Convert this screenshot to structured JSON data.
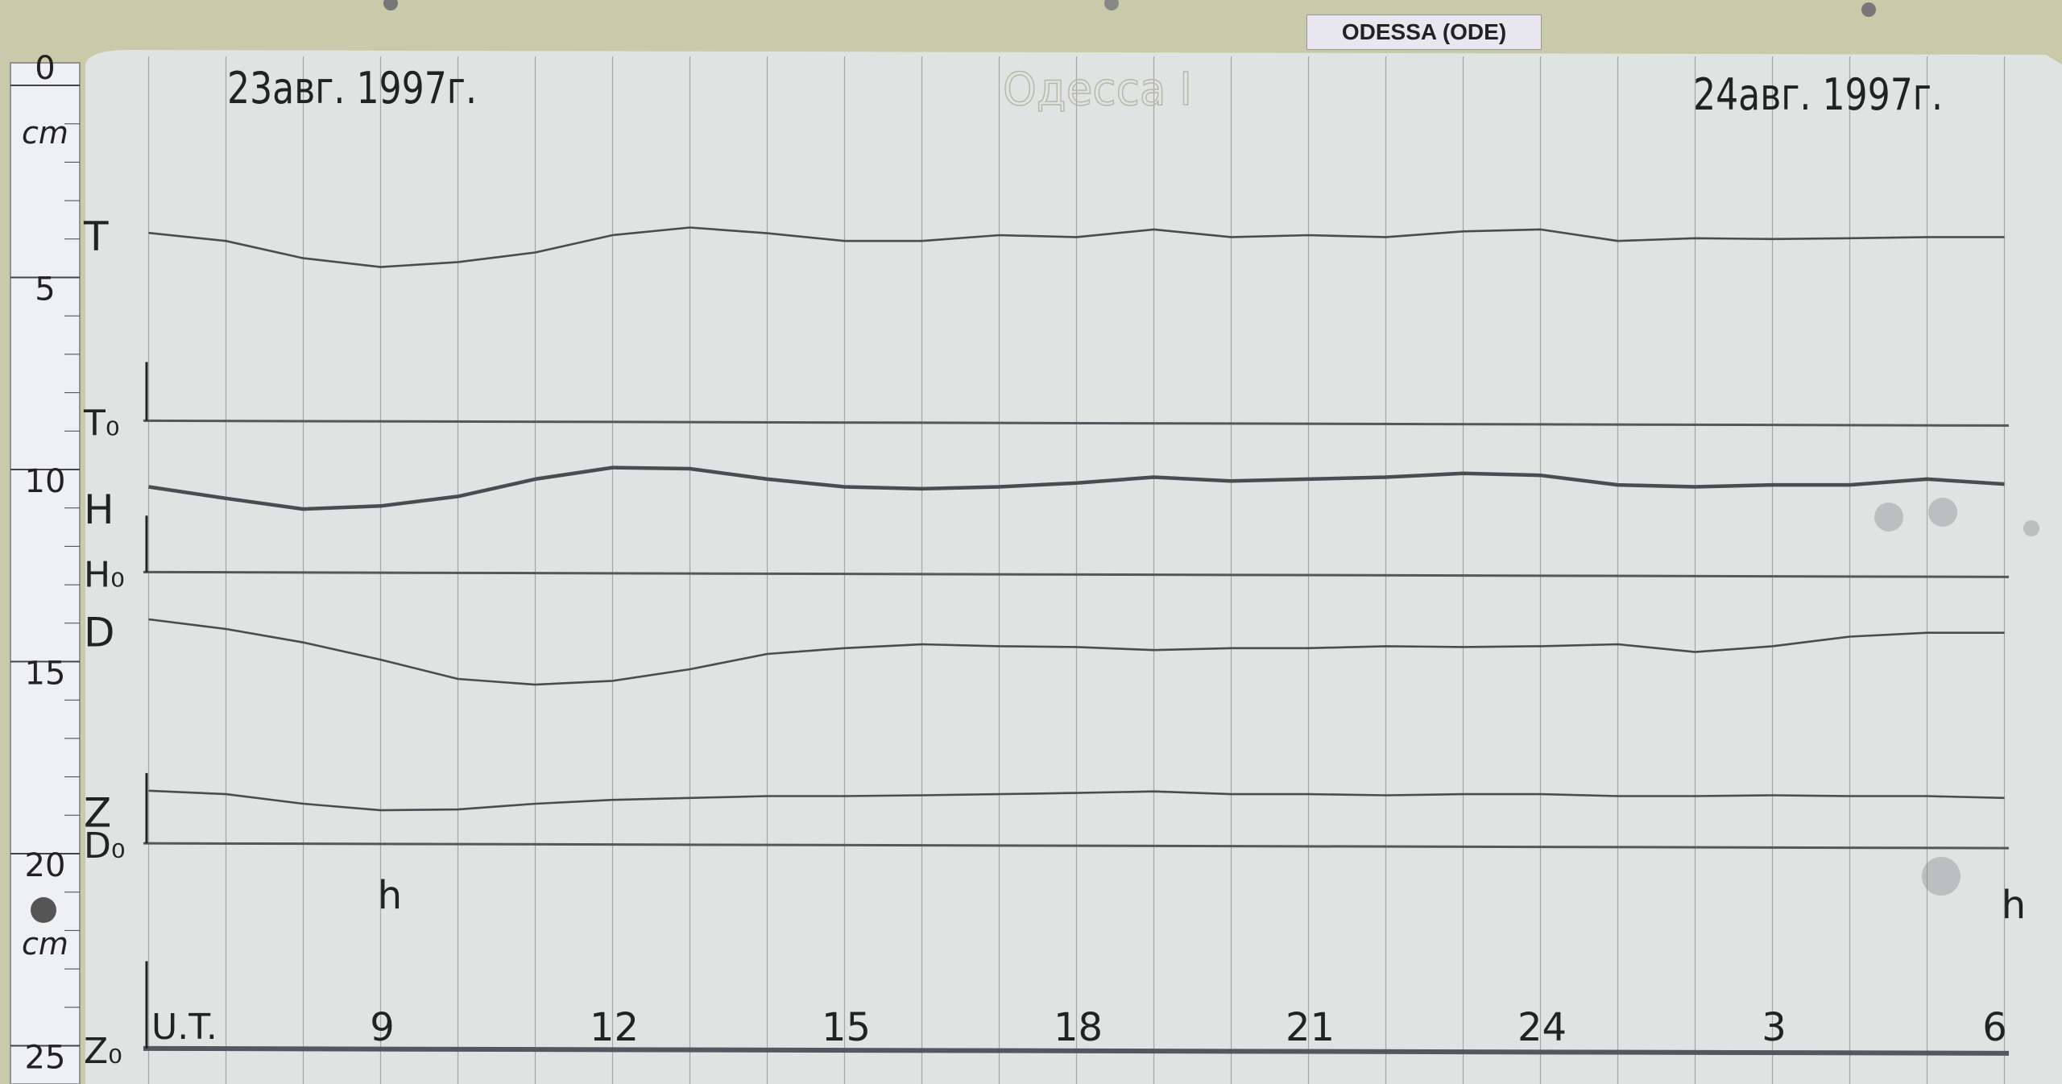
{
  "station_label": "ODESSA (ODE)",
  "colors": {
    "board": "#c8caa9",
    "paper": "#dfe3e1",
    "grid": "#8a8e8e",
    "trace": "#4a4c52",
    "baseline": "#55575c"
  },
  "chart_data": {
    "type": "line",
    "title": "Одесса I",
    "date_start_label": "23авг. 1997г.",
    "date_end_label": "24авг. 1997г.",
    "xlabel": "U.T.",
    "x_tick_labels": [
      "9",
      "12",
      "15",
      "18",
      "21",
      "24",
      "3",
      "6"
    ],
    "x_ticks": [
      "1997-08-23T09:00",
      "1997-08-23T12:00",
      "1997-08-23T15:00",
      "1997-08-23T18:00",
      "1997-08-23T21:00",
      "1997-08-24T00:00",
      "1997-08-24T03:00",
      "1997-08-24T06:00"
    ],
    "xlim": [
      "1997-08-23T06:00",
      "1997-08-24T06:00"
    ],
    "hour_marker_label": "h",
    "ruler": {
      "unit_label": "cm",
      "tick_labels": [
        "0",
        "5",
        "10",
        "15",
        "20",
        "25"
      ],
      "range": [
        0,
        25
      ]
    },
    "grid": true,
    "series": [
      {
        "name": "T",
        "points": [
          [
            "1997-08-23T06:00",
            3.84
          ],
          [
            "1997-08-23T07:00",
            4.05
          ],
          [
            "1997-08-23T08:00",
            4.5
          ],
          [
            "1997-08-23T09:00",
            4.73
          ],
          [
            "1997-08-23T10:00",
            4.6
          ],
          [
            "1997-08-23T11:00",
            4.35
          ],
          [
            "1997-08-23T12:00",
            3.9
          ],
          [
            "1997-08-23T13:00",
            3.7
          ],
          [
            "1997-08-23T14:00",
            3.85
          ],
          [
            "1997-08-23T15:00",
            4.05
          ],
          [
            "1997-08-23T16:00",
            4.05
          ],
          [
            "1997-08-23T17:00",
            3.9
          ],
          [
            "1997-08-23T18:00",
            3.95
          ],
          [
            "1997-08-23T19:00",
            3.75
          ],
          [
            "1997-08-23T20:00",
            3.95
          ],
          [
            "1997-08-23T21:00",
            3.9
          ],
          [
            "1997-08-23T22:00",
            3.95
          ],
          [
            "1997-08-23T23:00",
            3.8
          ],
          [
            "1997-08-24T00:00",
            3.75
          ],
          [
            "1997-08-24T01:00",
            4.05
          ],
          [
            "1997-08-24T02:00",
            3.98
          ],
          [
            "1997-08-24T03:00",
            4.0
          ],
          [
            "1997-08-24T04:00",
            3.98
          ],
          [
            "1997-08-24T05:00",
            3.95
          ],
          [
            "1997-08-24T06:00",
            3.95
          ]
        ]
      },
      {
        "name": "H",
        "points": [
          [
            "1997-08-23T06:00",
            10.45
          ],
          [
            "1997-08-23T07:00",
            10.75
          ],
          [
            "1997-08-23T08:00",
            11.03
          ],
          [
            "1997-08-23T09:00",
            10.95
          ],
          [
            "1997-08-23T10:00",
            10.7
          ],
          [
            "1997-08-23T11:00",
            10.25
          ],
          [
            "1997-08-23T12:00",
            9.95
          ],
          [
            "1997-08-23T13:00",
            9.98
          ],
          [
            "1997-08-23T14:00",
            10.25
          ],
          [
            "1997-08-23T15:00",
            10.45
          ],
          [
            "1997-08-23T16:00",
            10.5
          ],
          [
            "1997-08-23T17:00",
            10.45
          ],
          [
            "1997-08-23T18:00",
            10.35
          ],
          [
            "1997-08-23T19:00",
            10.2
          ],
          [
            "1997-08-23T20:00",
            10.3
          ],
          [
            "1997-08-23T21:00",
            10.25
          ],
          [
            "1997-08-23T22:00",
            10.2
          ],
          [
            "1997-08-23T23:00",
            10.1
          ],
          [
            "1997-08-24T00:00",
            10.15
          ],
          [
            "1997-08-24T01:00",
            10.4
          ],
          [
            "1997-08-24T02:00",
            10.45
          ],
          [
            "1997-08-24T03:00",
            10.4
          ],
          [
            "1997-08-24T04:00",
            10.4
          ],
          [
            "1997-08-24T05:00",
            10.25
          ],
          [
            "1997-08-24T06:00",
            10.38
          ]
        ]
      },
      {
        "name": "D",
        "points": [
          [
            "1997-08-23T06:00",
            13.9
          ],
          [
            "1997-08-23T07:00",
            14.15
          ],
          [
            "1997-08-23T08:00",
            14.5
          ],
          [
            "1997-08-23T09:00",
            14.95
          ],
          [
            "1997-08-23T10:00",
            15.45
          ],
          [
            "1997-08-23T11:00",
            15.6
          ],
          [
            "1997-08-23T12:00",
            15.5
          ],
          [
            "1997-08-23T13:00",
            15.2
          ],
          [
            "1997-08-23T14:00",
            14.8
          ],
          [
            "1997-08-23T15:00",
            14.65
          ],
          [
            "1997-08-23T16:00",
            14.55
          ],
          [
            "1997-08-23T17:00",
            14.6
          ],
          [
            "1997-08-23T18:00",
            14.62
          ],
          [
            "1997-08-23T19:00",
            14.7
          ],
          [
            "1997-08-23T20:00",
            14.65
          ],
          [
            "1997-08-23T21:00",
            14.65
          ],
          [
            "1997-08-23T22:00",
            14.6
          ],
          [
            "1997-08-23T23:00",
            14.62
          ],
          [
            "1997-08-24T00:00",
            14.6
          ],
          [
            "1997-08-24T01:00",
            14.55
          ],
          [
            "1997-08-24T02:00",
            14.75
          ],
          [
            "1997-08-24T03:00",
            14.6
          ],
          [
            "1997-08-24T04:00",
            14.35
          ],
          [
            "1997-08-24T05:00",
            14.25
          ],
          [
            "1997-08-24T06:00",
            14.25
          ]
        ]
      },
      {
        "name": "Z",
        "points": [
          [
            "1997-08-23T06:00",
            18.36
          ],
          [
            "1997-08-23T07:00",
            18.45
          ],
          [
            "1997-08-23T08:00",
            18.7
          ],
          [
            "1997-08-23T09:00",
            18.87
          ],
          [
            "1997-08-23T10:00",
            18.85
          ],
          [
            "1997-08-23T11:00",
            18.7
          ],
          [
            "1997-08-23T12:00",
            18.6
          ],
          [
            "1997-08-23T13:00",
            18.55
          ],
          [
            "1997-08-23T14:00",
            18.5
          ],
          [
            "1997-08-23T15:00",
            18.5
          ],
          [
            "1997-08-23T16:00",
            18.48
          ],
          [
            "1997-08-23T17:00",
            18.45
          ],
          [
            "1997-08-23T18:00",
            18.42
          ],
          [
            "1997-08-23T19:00",
            18.38
          ],
          [
            "1997-08-23T20:00",
            18.45
          ],
          [
            "1997-08-23T21:00",
            18.45
          ],
          [
            "1997-08-23T22:00",
            18.48
          ],
          [
            "1997-08-23T23:00",
            18.45
          ],
          [
            "1997-08-24T00:00",
            18.45
          ],
          [
            "1997-08-24T01:00",
            18.5
          ],
          [
            "1997-08-24T02:00",
            18.5
          ],
          [
            "1997-08-24T03:00",
            18.48
          ],
          [
            "1997-08-24T04:00",
            18.5
          ],
          [
            "1997-08-24T05:00",
            18.5
          ],
          [
            "1997-08-24T06:00",
            18.55
          ]
        ]
      }
    ],
    "baselines": [
      {
        "name": "T₀",
        "value": 8.73
      },
      {
        "name": "H₀",
        "value": 12.67
      },
      {
        "name": "D₀",
        "value": 19.73
      },
      {
        "name": "Z₀",
        "value": 25.07
      }
    ]
  }
}
